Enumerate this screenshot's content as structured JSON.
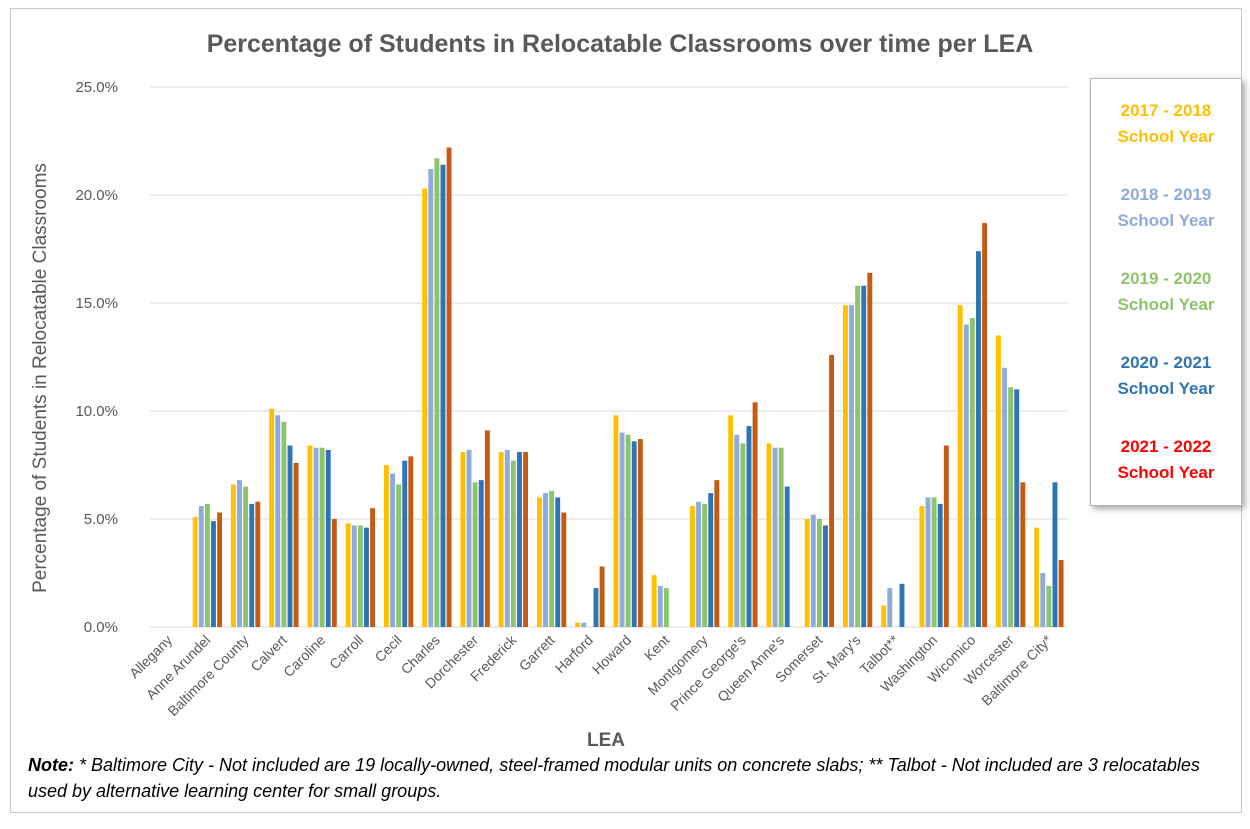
{
  "chart_data": {
    "type": "bar",
    "title": "Percentage of Students in Relocatable Classrooms over time per LEA",
    "xlabel": "LEA",
    "ylabel": "Percentage of Students in Relocatable Classrooms",
    "ylim": [
      0,
      25
    ],
    "yticks": [
      "0.0%",
      "5.0%",
      "10.0%",
      "15.0%",
      "20.0%",
      "25.0%"
    ],
    "grid": true,
    "legend_position": "right",
    "categories": [
      "Allegany",
      "Anne Arundel",
      "Baltimore County",
      "Calvert",
      "Caroline",
      "Carroll",
      "Cecil",
      "Charles",
      "Dorchester",
      "Frederick",
      "Garrett",
      "Harford",
      "Howard",
      "Kent",
      "Montgomery",
      "Prince George's",
      "Queen Anne's",
      "Somerset",
      "St. Mary's",
      "Talbot**",
      "Washington",
      "Wicomico",
      "Worcester",
      "Baltimore City*"
    ],
    "series": [
      {
        "name": "2017 - 2018 School Year",
        "label_line1": "2017 - 2018",
        "label_line2": "School Year",
        "color": "#FFC000",
        "text_color": "#FFC000",
        "values": [
          0,
          5.1,
          6.6,
          10.1,
          8.4,
          4.8,
          7.5,
          20.3,
          8.1,
          8.1,
          6.0,
          0.2,
          9.8,
          2.4,
          5.6,
          9.8,
          8.5,
          5.0,
          14.9,
          1.0,
          5.6,
          14.9,
          13.5,
          4.6
        ]
      },
      {
        "name": "2018 - 2019 School Year",
        "label_line1": "2018 - 2019",
        "label_line2": "School Year",
        "color": "#8FAADC",
        "text_color": "#8FAADC",
        "values": [
          0,
          5.6,
          6.8,
          9.8,
          8.3,
          4.7,
          7.1,
          21.2,
          8.2,
          8.2,
          6.2,
          0.2,
          9.0,
          1.9,
          5.8,
          8.9,
          8.3,
          5.2,
          14.9,
          1.8,
          6.0,
          14.0,
          12.0,
          2.5
        ]
      },
      {
        "name": "2019 - 2020 School Year",
        "label_line1": "2019 - 2020",
        "label_line2": "School Year",
        "color": "#8CC36B",
        "text_color": "#8CC36B",
        "values": [
          0,
          5.7,
          6.5,
          9.5,
          8.3,
          4.7,
          6.6,
          21.7,
          6.7,
          7.7,
          6.3,
          0,
          8.9,
          1.8,
          5.7,
          8.5,
          8.3,
          5.0,
          15.8,
          0,
          6.0,
          14.3,
          11.1,
          1.9
        ]
      },
      {
        "name": "2020 - 2021 School Year",
        "label_line1": "2020 - 2021",
        "label_line2": "School Year",
        "color": "#2E75B6",
        "text_color": "#2E75B6",
        "values": [
          0,
          4.9,
          5.7,
          8.4,
          8.2,
          4.6,
          7.7,
          21.4,
          6.8,
          8.1,
          6.0,
          1.8,
          8.6,
          0,
          6.2,
          9.3,
          6.5,
          4.7,
          15.8,
          2.0,
          5.7,
          17.4,
          11.0,
          6.7
        ]
      },
      {
        "name": "2021 - 2022 School Year",
        "label_line1": "2021 - 2022",
        "label_line2": "School Year",
        "color": "#C55A11",
        "text_color": "#FF0000",
        "values": [
          0,
          5.3,
          5.8,
          7.6,
          5.0,
          5.5,
          7.9,
          22.2,
          9.1,
          8.1,
          5.3,
          2.8,
          8.7,
          0,
          6.8,
          10.4,
          0,
          12.6,
          16.4,
          0,
          8.4,
          18.7,
          6.7,
          3.1
        ]
      }
    ]
  },
  "note": {
    "label": "Note:",
    "text": " * Baltimore City - Not included are 19 locally-owned, steel-framed modular units on concrete slabs; ** Talbot - Not included are 3 relocatables used by alternative learning center for small groups."
  }
}
